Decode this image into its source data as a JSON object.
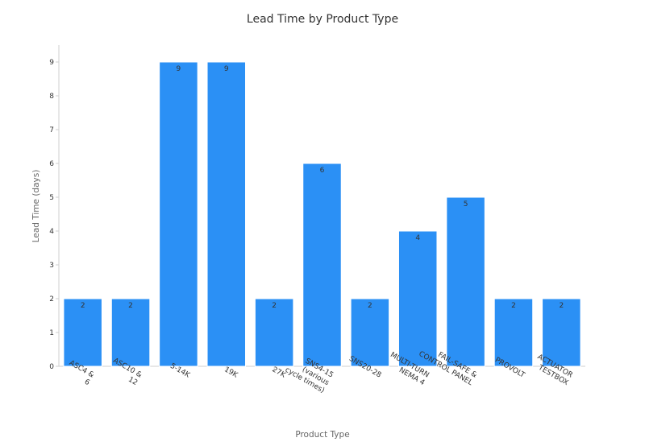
{
  "chart_data": {
    "type": "bar",
    "title": "Lead Time by Product Type",
    "xlabel": "Product Type",
    "ylabel": "Lead Time (days)",
    "categories": [
      "ASC4 &\n6",
      "ASC10 &\n12",
      "5-14K",
      "19K",
      "27K",
      "SNS4-15\n(various\ncycle times)",
      "SNS20-28",
      "MULTI-TURN\nNEMA 4",
      "FAIL-SAFE &\nCONTROL PANEL",
      "PROVOLT",
      "ACTUATOR\nTESTBOX"
    ],
    "values": [
      2,
      2,
      9,
      9,
      2,
      6,
      2,
      4,
      5,
      2,
      2
    ],
    "data_labels": [
      "2",
      "2",
      "9",
      "9",
      "2",
      "6",
      "2",
      "4",
      "5",
      "2",
      "2"
    ],
    "ylim": [
      0,
      9.5
    ],
    "yticks": [
      0,
      1,
      2,
      3,
      4,
      5,
      6,
      7,
      8,
      9
    ],
    "grid": false,
    "colors": {
      "bar": "#2b90f5",
      "bar_edge": "#ffffff",
      "axis": "#cfcfcf",
      "text": "#333333",
      "label": "#666666"
    }
  }
}
